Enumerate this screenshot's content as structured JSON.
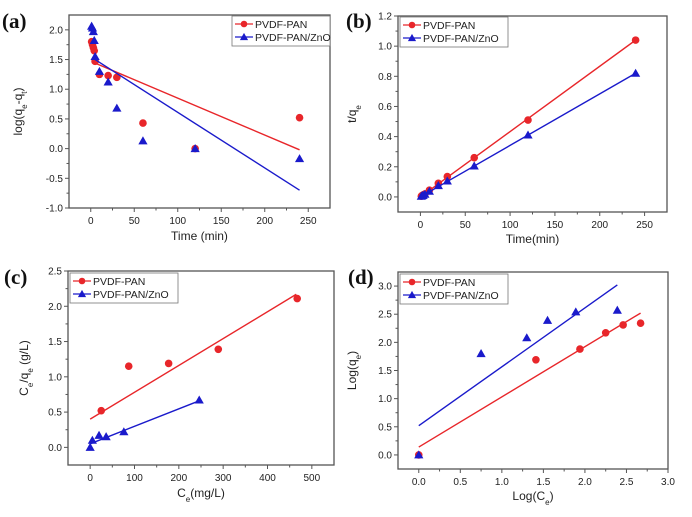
{
  "colors": {
    "series1": "#e8262a",
    "series2": "#1a1acb",
    "axis": "#555555"
  },
  "chart_data": [
    {
      "panel": "(a)",
      "type": "scatter",
      "title": "",
      "xlabel": "Time (min)",
      "ylabel": "log(q_e-q_t)",
      "xlim": [
        -25,
        275
      ],
      "ylim": [
        -1.0,
        2.25
      ],
      "xticks": [
        0,
        50,
        100,
        150,
        200,
        250
      ],
      "xtick_labels": [
        "0",
        "50",
        "100",
        "150",
        "200",
        "250"
      ],
      "yticks": [
        -1.0,
        -0.5,
        0.0,
        0.5,
        1.0,
        1.5,
        2.0
      ],
      "ytick_labels": [
        "-1.0",
        "-0.5",
        "0.0",
        "0.5",
        "1.0",
        "1.5",
        "2.0"
      ],
      "legend": "top-right",
      "series": [
        {
          "name": "PVDF-PAN",
          "marker": "circle",
          "x": [
            1,
            2,
            3,
            4,
            5,
            10,
            20,
            30,
            60,
            120,
            240
          ],
          "y": [
            1.8,
            1.75,
            1.7,
            1.65,
            1.47,
            1.25,
            1.23,
            1.2,
            0.43,
            0.0,
            0.52
          ],
          "fit": {
            "x": [
              5,
              240
            ],
            "y": [
              1.44,
              -0.02
            ]
          }
        },
        {
          "name": "PVDF-PAN/ZnO",
          "marker": "triangle",
          "x": [
            1,
            2,
            3,
            4,
            5,
            10,
            20,
            30,
            60,
            120,
            240
          ],
          "y": [
            2.06,
            2.03,
            1.97,
            1.82,
            1.55,
            1.3,
            1.12,
            0.68,
            0.13,
            0.0,
            -0.17
          ],
          "fit": {
            "x": [
              5,
              240
            ],
            "y": [
              1.5,
              -0.7
            ]
          }
        }
      ]
    },
    {
      "panel": "(b)",
      "type": "line",
      "title": "",
      "xlabel": "Time(min)",
      "ylabel": "t/q_e",
      "xlim": [
        -25,
        275
      ],
      "ylim": [
        -0.1,
        1.2
      ],
      "xticks": [
        0,
        50,
        100,
        150,
        200,
        250
      ],
      "xtick_labels": [
        "0",
        "50",
        "100",
        "150",
        "200",
        "250"
      ],
      "yticks": [
        0.0,
        0.2,
        0.4,
        0.6,
        0.8,
        1.0,
        1.2
      ],
      "ytick_labels": [
        "0.0",
        "0.2",
        "0.4",
        "0.6",
        "0.8",
        "1.0",
        "1.2"
      ],
      "legend": "top-left",
      "series": [
        {
          "name": "PVDF-PAN",
          "marker": "circle",
          "x": [
            1,
            2,
            3,
            5,
            10,
            20,
            30,
            60,
            120,
            240
          ],
          "y": [
            0.005,
            0.01,
            0.013,
            0.02,
            0.045,
            0.09,
            0.135,
            0.26,
            0.51,
            1.04
          ],
          "fit": {
            "x": [
              0,
              240
            ],
            "y": [
              0.0,
              1.04
            ]
          }
        },
        {
          "name": "PVDF-PAN/ZnO",
          "marker": "triangle",
          "x": [
            1,
            2,
            3,
            5,
            10,
            20,
            30,
            60,
            120,
            240
          ],
          "y": [
            0.004,
            0.008,
            0.01,
            0.017,
            0.037,
            0.075,
            0.105,
            0.205,
            0.41,
            0.82
          ],
          "fit": {
            "x": [
              0,
              240
            ],
            "y": [
              0.0,
              0.82
            ]
          }
        }
      ]
    },
    {
      "panel": "(c)",
      "type": "scatter",
      "title": "",
      "xlabel": "C_e(mg/L)",
      "ylabel": "C_e/q_e (g/L)",
      "xlim": [
        -50,
        550
      ],
      "ylim": [
        -0.25,
        2.5
      ],
      "xticks": [
        0,
        100,
        200,
        300,
        400,
        500
      ],
      "xtick_labels": [
        "0",
        "100",
        "200",
        "300",
        "400",
        "500"
      ],
      "yticks": [
        0.0,
        0.5,
        1.0,
        1.5,
        2.0,
        2.5
      ],
      "ytick_labels": [
        "0.0",
        "0.5",
        "1.0",
        "1.5",
        "2.0",
        "2.5"
      ],
      "legend": "top-left",
      "series": [
        {
          "name": "PVDF-PAN",
          "marker": "circle",
          "x": [
            25,
            87,
            177,
            289,
            467
          ],
          "y": [
            0.52,
            1.15,
            1.19,
            1.39,
            2.11
          ],
          "fit": {
            "x": [
              0,
              465
            ],
            "y": [
              0.4,
              2.17
            ]
          }
        },
        {
          "name": "PVDF-PAN/ZnO",
          "marker": "triangle",
          "x": [
            0,
            5,
            20,
            36,
            76,
            246
          ],
          "y": [
            0.0,
            0.1,
            0.17,
            0.15,
            0.22,
            0.67
          ],
          "fit": {
            "x": [
              0,
              246
            ],
            "y": [
              0.05,
              0.66
            ]
          }
        }
      ]
    },
    {
      "panel": "(d)",
      "type": "scatter",
      "title": "",
      "xlabel": "Log(C_e)",
      "ylabel": "Log(q_e)",
      "xlim": [
        -0.25,
        3.0
      ],
      "ylim": [
        -0.25,
        3.25
      ],
      "xticks": [
        0.0,
        0.5,
        1.0,
        1.5,
        2.0,
        2.5,
        3.0
      ],
      "xtick_labels": [
        "0.0",
        "0.5",
        "1.0",
        "1.5",
        "2.0",
        "2.5",
        "3.0"
      ],
      "yticks": [
        0.0,
        0.5,
        1.0,
        1.5,
        2.0,
        2.5,
        3.0
      ],
      "ytick_labels": [
        "0.0",
        "0.5",
        "1.0",
        "1.5",
        "2.0",
        "2.5",
        "3.0"
      ],
      "legend": "top-left",
      "series": [
        {
          "name": "PVDF-PAN",
          "marker": "circle",
          "x": [
            0.0,
            1.41,
            1.94,
            2.25,
            2.46,
            2.67
          ],
          "y": [
            0.0,
            1.69,
            1.88,
            2.17,
            2.31,
            2.34
          ],
          "fit": {
            "x": [
              0,
              2.67
            ],
            "y": [
              0.14,
              2.52
            ]
          }
        },
        {
          "name": "PVDF-PAN/ZnO",
          "marker": "triangle",
          "x": [
            0.0,
            0.75,
            1.3,
            1.55,
            1.89,
            2.39
          ],
          "y": [
            0.0,
            1.8,
            2.08,
            2.39,
            2.54,
            2.57
          ],
          "fit": {
            "x": [
              0,
              2.39
            ],
            "y": [
              0.52,
              3.02
            ]
          }
        }
      ]
    }
  ]
}
